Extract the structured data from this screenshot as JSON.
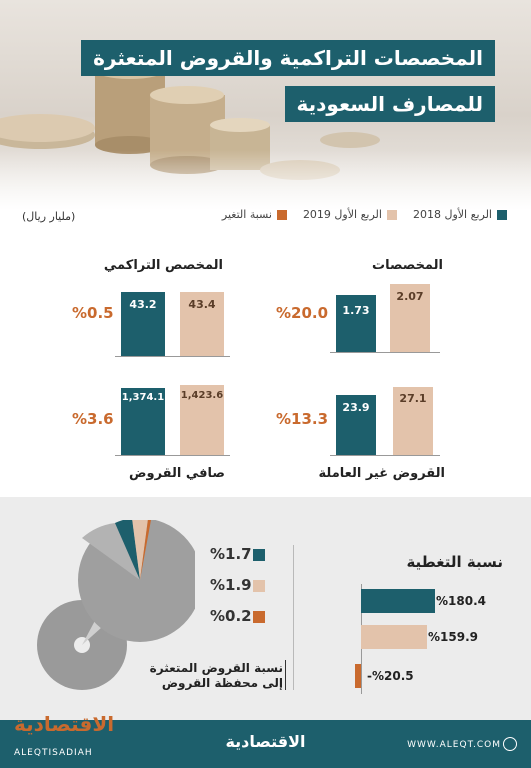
{
  "title": {
    "line1": "المخصصات التراكمية والقروض المتعثرة",
    "line2": "للمصارف السعودية"
  },
  "unit": "(مليار ريال)",
  "legend": [
    {
      "label": "الربع الأول 2018",
      "color": "#1d5f6c"
    },
    {
      "label": "الربع الأول 2019",
      "color": "#e3c3ab"
    },
    {
      "label": "نسبة التغير",
      "color": "#c96a2e"
    }
  ],
  "colors": {
    "q1_2018": "#1d5f6c",
    "q1_2019": "#e3c3ab",
    "change": "#c96a2e",
    "gray": "#9a9a9a"
  },
  "chart_data": [
    {
      "type": "bar",
      "title": "المخصصات",
      "series": [
        {
          "name": "الربع الأول 2018",
          "values": [
            1.73
          ],
          "label": "1.73"
        },
        {
          "name": "الربع الأول 2019",
          "values": [
            2.07
          ],
          "label": "2.07"
        }
      ],
      "change_label": "%20.0"
    },
    {
      "type": "bar",
      "title": "المخصص التراكمي",
      "series": [
        {
          "name": "الربع الأول 2018",
          "values": [
            43.2
          ],
          "label": "43.2"
        },
        {
          "name": "الربع الأول 2019",
          "values": [
            43.4
          ],
          "label": "43.4"
        }
      ],
      "change_label": "%0.5"
    },
    {
      "type": "bar",
      "title": "القروض غير العاملة",
      "series": [
        {
          "name": "الربع الأول 2018",
          "values": [
            23.9
          ],
          "label": "23.9"
        },
        {
          "name": "الربع الأول 2019",
          "values": [
            27.1
          ],
          "label": "27.1"
        }
      ],
      "change_label": "%13.3"
    },
    {
      "type": "bar",
      "title": "صافي القروض",
      "series": [
        {
          "name": "الربع الأول 2018",
          "values": [
            1374.1
          ],
          "label": "1,374.1"
        },
        {
          "name": "الربع الأول 2019",
          "values": [
            1423.6
          ],
          "label": "1,423.6"
        }
      ],
      "change_label": "%3.6"
    },
    {
      "type": "bar",
      "orientation": "horizontal",
      "title": "نسبة التغطية",
      "categories": [
        "الربع الأول 2018",
        "الربع الأول 2019",
        "نسبة التغير"
      ],
      "values": [
        180.4,
        159.9,
        -20.5
      ],
      "labels": [
        "%180.4",
        "%159.9",
        "-%20.5"
      ]
    },
    {
      "type": "pie",
      "caption_line1": "نسبة القروض المتعثرة",
      "caption_line2": "إلى محفظة القروض",
      "values": [
        1.7,
        1.9,
        0.2
      ],
      "labels": [
        "%1.7",
        "%1.9",
        "%0.2"
      ],
      "series_names": [
        "الربع الأول 2018",
        "الربع الأول 2019",
        "نسبة التغير"
      ]
    }
  ],
  "footer": {
    "brand": "الاقتصادية",
    "website": "WWW.ALEQT.COM",
    "logo_ar": "الاقتصادية",
    "logo_en": "ALEQTISADIAH"
  }
}
